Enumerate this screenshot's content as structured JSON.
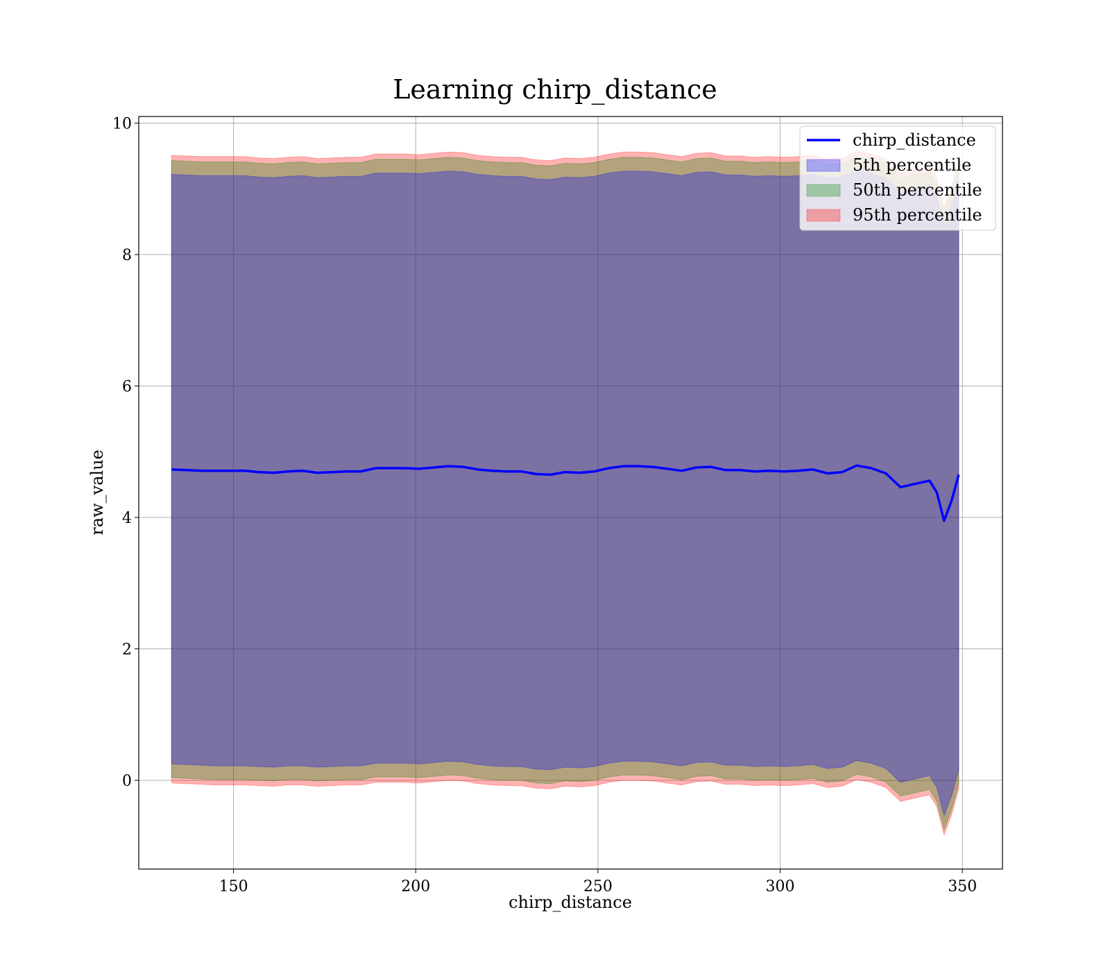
{
  "chart_data": {
    "type": "area",
    "title": "Learning chirp_distance",
    "xlabel": "chirp_distance",
    "ylabel": "raw_value",
    "xlim": [
      124,
      361
    ],
    "ylim": [
      -1.35,
      10.1
    ],
    "xticks": [
      150,
      200,
      250,
      300,
      350
    ],
    "yticks": [
      0,
      2,
      4,
      6,
      8,
      10
    ],
    "grid": true,
    "legend_position": "top-right",
    "x": [
      133,
      137,
      141,
      145,
      149,
      153,
      157,
      161,
      165,
      169,
      173,
      177,
      181,
      185,
      189,
      193,
      197,
      201,
      205,
      209,
      213,
      217,
      221,
      225,
      229,
      233,
      237,
      241,
      245,
      249,
      253,
      257,
      261,
      265,
      269,
      273,
      277,
      281,
      285,
      289,
      293,
      297,
      301,
      305,
      309,
      313,
      317,
      321,
      325,
      329,
      333,
      337,
      341,
      343,
      345,
      347,
      349
    ],
    "series": [
      {
        "name": "chirp_distance",
        "kind": "line",
        "color": "#0000ff",
        "values": [
          4.73,
          4.72,
          4.71,
          4.71,
          4.71,
          4.71,
          4.69,
          4.68,
          4.7,
          4.71,
          4.68,
          4.69,
          4.7,
          4.7,
          4.75,
          4.75,
          4.75,
          4.74,
          4.76,
          4.78,
          4.77,
          4.73,
          4.71,
          4.7,
          4.7,
          4.66,
          4.65,
          4.69,
          4.68,
          4.7,
          4.75,
          4.78,
          4.78,
          4.77,
          4.74,
          4.71,
          4.76,
          4.77,
          4.72,
          4.72,
          4.7,
          4.71,
          4.7,
          4.71,
          4.73,
          4.67,
          4.69,
          4.79,
          4.75,
          4.67,
          4.46,
          4.51,
          4.56,
          4.38,
          3.95,
          4.25,
          4.65
        ]
      },
      {
        "name": "5th percentile",
        "kind": "band",
        "color": "#0000ff",
        "lower": [
          0.25,
          0.24,
          0.23,
          0.22,
          0.22,
          0.22,
          0.21,
          0.2,
          0.22,
          0.22,
          0.2,
          0.21,
          0.22,
          0.22,
          0.26,
          0.26,
          0.26,
          0.25,
          0.27,
          0.29,
          0.28,
          0.24,
          0.22,
          0.21,
          0.21,
          0.17,
          0.16,
          0.2,
          0.19,
          0.21,
          0.26,
          0.29,
          0.29,
          0.28,
          0.25,
          0.22,
          0.27,
          0.28,
          0.23,
          0.23,
          0.21,
          0.22,
          0.21,
          0.22,
          0.24,
          0.18,
          0.2,
          0.3,
          0.26,
          0.18,
          -0.03,
          0.02,
          0.07,
          -0.11,
          -0.54,
          -0.24,
          0.16
        ],
        "upper": [
          9.22,
          9.21,
          9.2,
          9.2,
          9.2,
          9.2,
          9.18,
          9.17,
          9.19,
          9.2,
          9.17,
          9.18,
          9.19,
          9.19,
          9.24,
          9.24,
          9.24,
          9.23,
          9.25,
          9.27,
          9.26,
          9.22,
          9.2,
          9.19,
          9.19,
          9.15,
          9.14,
          9.18,
          9.17,
          9.19,
          9.24,
          9.27,
          9.27,
          9.26,
          9.23,
          9.2,
          9.25,
          9.26,
          9.21,
          9.21,
          9.19,
          9.2,
          9.19,
          9.2,
          9.22,
          9.16,
          9.18,
          9.28,
          9.24,
          9.16,
          8.95,
          9.0,
          9.05,
          8.87,
          8.44,
          8.74,
          9.14
        ]
      },
      {
        "name": "50th percentile",
        "kind": "band",
        "color": "#008000",
        "lower": [
          0.04,
          0.03,
          0.02,
          0.01,
          0.01,
          0.01,
          0.0,
          -0.01,
          0.01,
          0.01,
          -0.01,
          0.0,
          0.01,
          0.01,
          0.05,
          0.05,
          0.05,
          0.04,
          0.06,
          0.08,
          0.07,
          0.03,
          0.01,
          0.0,
          0.0,
          -0.04,
          -0.05,
          -0.01,
          -0.02,
          0.0,
          0.05,
          0.08,
          0.08,
          0.07,
          0.04,
          0.01,
          0.06,
          0.07,
          0.02,
          0.02,
          0.0,
          0.01,
          0.0,
          0.01,
          0.03,
          -0.03,
          -0.01,
          0.09,
          0.05,
          -0.03,
          -0.24,
          -0.19,
          -0.14,
          -0.32,
          -0.75,
          -0.45,
          -0.05
        ],
        "upper": [
          9.43,
          9.42,
          9.41,
          9.41,
          9.41,
          9.41,
          9.39,
          9.38,
          9.4,
          9.41,
          9.38,
          9.39,
          9.4,
          9.4,
          9.45,
          9.45,
          9.45,
          9.44,
          9.46,
          9.48,
          9.47,
          9.43,
          9.41,
          9.4,
          9.4,
          9.36,
          9.35,
          9.39,
          9.38,
          9.4,
          9.45,
          9.48,
          9.48,
          9.47,
          9.44,
          9.41,
          9.46,
          9.47,
          9.42,
          9.42,
          9.4,
          9.41,
          9.4,
          9.41,
          9.43,
          9.37,
          9.39,
          9.49,
          9.45,
          9.37,
          9.16,
          9.21,
          9.26,
          9.08,
          8.65,
          8.95,
          9.35
        ]
      },
      {
        "name": "95th percentile",
        "kind": "band",
        "color": "#ff0000",
        "lower": [
          -0.04,
          -0.05,
          -0.06,
          -0.07,
          -0.07,
          -0.07,
          -0.08,
          -0.09,
          -0.07,
          -0.07,
          -0.09,
          -0.08,
          -0.07,
          -0.07,
          -0.03,
          -0.03,
          -0.03,
          -0.04,
          -0.02,
          0.0,
          -0.01,
          -0.05,
          -0.07,
          -0.08,
          -0.08,
          -0.12,
          -0.13,
          -0.09,
          -0.1,
          -0.08,
          -0.03,
          0.0,
          0.0,
          -0.01,
          -0.04,
          -0.07,
          -0.02,
          -0.01,
          -0.06,
          -0.06,
          -0.08,
          -0.07,
          -0.08,
          -0.07,
          -0.05,
          -0.11,
          -0.09,
          0.01,
          -0.03,
          -0.11,
          -0.32,
          -0.27,
          -0.22,
          -0.4,
          -0.83,
          -0.53,
          -0.13
        ],
        "upper": [
          9.51,
          9.5,
          9.49,
          9.49,
          9.49,
          9.49,
          9.47,
          9.46,
          9.48,
          9.49,
          9.46,
          9.47,
          9.48,
          9.48,
          9.53,
          9.53,
          9.53,
          9.52,
          9.54,
          9.56,
          9.55,
          9.51,
          9.49,
          9.48,
          9.48,
          9.44,
          9.43,
          9.47,
          9.46,
          9.48,
          9.53,
          9.56,
          9.56,
          9.55,
          9.52,
          9.49,
          9.54,
          9.55,
          9.5,
          9.5,
          9.48,
          9.49,
          9.48,
          9.49,
          9.51,
          9.45,
          9.47,
          9.57,
          9.53,
          9.45,
          9.24,
          9.29,
          9.34,
          9.16,
          8.73,
          9.03,
          9.43
        ]
      }
    ]
  }
}
